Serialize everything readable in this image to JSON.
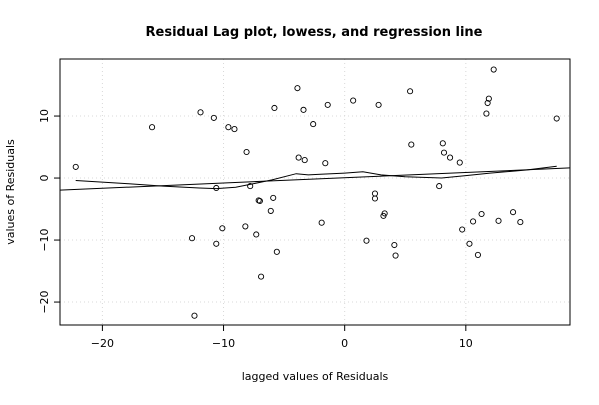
{
  "chart_data": {
    "type": "scatter",
    "title": "Residual Lag plot, lowess, and regression line",
    "xlabel": "lagged values of Residuals",
    "ylabel": "values of Residuals",
    "xlim": [
      -23.5,
      18.6
    ],
    "ylim": [
      -23.7,
      19.2
    ],
    "x_ticks": [
      -20,
      -10,
      0,
      10
    ],
    "y_ticks": [
      -20,
      -10,
      0,
      10
    ],
    "grid": true,
    "points": [
      {
        "x": -22.2,
        "y": 1.8
      },
      {
        "x": -15.9,
        "y": 8.2
      },
      {
        "x": -12.6,
        "y": -9.7
      },
      {
        "x": -12.4,
        "y": -22.2
      },
      {
        "x": -11.9,
        "y": 10.6
      },
      {
        "x": -10.8,
        "y": 9.7
      },
      {
        "x": -10.6,
        "y": -1.6
      },
      {
        "x": -10.6,
        "y": -10.6
      },
      {
        "x": -10.1,
        "y": -8.1
      },
      {
        "x": -9.6,
        "y": 8.2
      },
      {
        "x": -9.1,
        "y": 7.9
      },
      {
        "x": -8.2,
        "y": -7.8
      },
      {
        "x": -8.1,
        "y": 4.2
      },
      {
        "x": -7.8,
        "y": -1.3
      },
      {
        "x": -7.3,
        "y": -9.1
      },
      {
        "x": -7.1,
        "y": -3.6
      },
      {
        "x": -7.0,
        "y": -3.7
      },
      {
        "x": -6.9,
        "y": -15.9
      },
      {
        "x": -6.1,
        "y": -5.3
      },
      {
        "x": -5.9,
        "y": -3.2
      },
      {
        "x": -5.8,
        "y": 11.3
      },
      {
        "x": -5.6,
        "y": -11.9
      },
      {
        "x": -3.9,
        "y": 14.5
      },
      {
        "x": -3.8,
        "y": 3.3
      },
      {
        "x": -3.4,
        "y": 11.0
      },
      {
        "x": -3.3,
        "y": 2.9
      },
      {
        "x": -2.6,
        "y": 8.7
      },
      {
        "x": -1.9,
        "y": -7.2
      },
      {
        "x": -1.6,
        "y": 2.4
      },
      {
        "x": -1.4,
        "y": 11.8
      },
      {
        "x": 0.7,
        "y": 12.5
      },
      {
        "x": 1.8,
        "y": -10.1
      },
      {
        "x": 2.5,
        "y": -2.5
      },
      {
        "x": 2.5,
        "y": -3.3
      },
      {
        "x": 2.8,
        "y": 11.8
      },
      {
        "x": 3.2,
        "y": -6.1
      },
      {
        "x": 3.3,
        "y": -5.7
      },
      {
        "x": 4.1,
        "y": -10.8
      },
      {
        "x": 4.2,
        "y": -12.5
      },
      {
        "x": 5.4,
        "y": 14.0
      },
      {
        "x": 5.5,
        "y": 5.4
      },
      {
        "x": 7.8,
        "y": -1.3
      },
      {
        "x": 8.1,
        "y": 5.6
      },
      {
        "x": 8.2,
        "y": 4.1
      },
      {
        "x": 8.7,
        "y": 3.3
      },
      {
        "x": 9.5,
        "y": 2.5
      },
      {
        "x": 9.7,
        "y": -8.3
      },
      {
        "x": 10.3,
        "y": -10.6
      },
      {
        "x": 10.6,
        "y": -7.0
      },
      {
        "x": 11.0,
        "y": -12.4
      },
      {
        "x": 11.3,
        "y": -5.8
      },
      {
        "x": 11.7,
        "y": 10.4
      },
      {
        "x": 11.8,
        "y": 12.1
      },
      {
        "x": 11.9,
        "y": 12.8
      },
      {
        "x": 12.3,
        "y": 17.5
      },
      {
        "x": 12.7,
        "y": -6.9
      },
      {
        "x": 13.9,
        "y": -5.5
      },
      {
        "x": 14.5,
        "y": -7.1
      },
      {
        "x": 17.5,
        "y": 9.6
      }
    ],
    "lowess": [
      {
        "x": -22.2,
        "y": -0.4
      },
      {
        "x": -18.0,
        "y": -0.9
      },
      {
        "x": -15.0,
        "y": -1.3
      },
      {
        "x": -12.0,
        "y": -1.6
      },
      {
        "x": -10.6,
        "y": -1.7
      },
      {
        "x": -9.0,
        "y": -1.5
      },
      {
        "x": -7.5,
        "y": -0.9
      },
      {
        "x": -6.0,
        "y": -0.3
      },
      {
        "x": -4.0,
        "y": 0.7
      },
      {
        "x": -3.0,
        "y": 0.5
      },
      {
        "x": -2.0,
        "y": 0.6
      },
      {
        "x": 0.0,
        "y": 0.8
      },
      {
        "x": 1.5,
        "y": 1.0
      },
      {
        "x": 3.0,
        "y": 0.5
      },
      {
        "x": 5.0,
        "y": 0.2
      },
      {
        "x": 8.0,
        "y": 0.0
      },
      {
        "x": 10.0,
        "y": 0.4
      },
      {
        "x": 12.0,
        "y": 0.8
      },
      {
        "x": 15.0,
        "y": 1.3
      },
      {
        "x": 17.5,
        "y": 1.9
      }
    ],
    "regression": {
      "intercept": 0.05,
      "slope": 0.085
    }
  }
}
